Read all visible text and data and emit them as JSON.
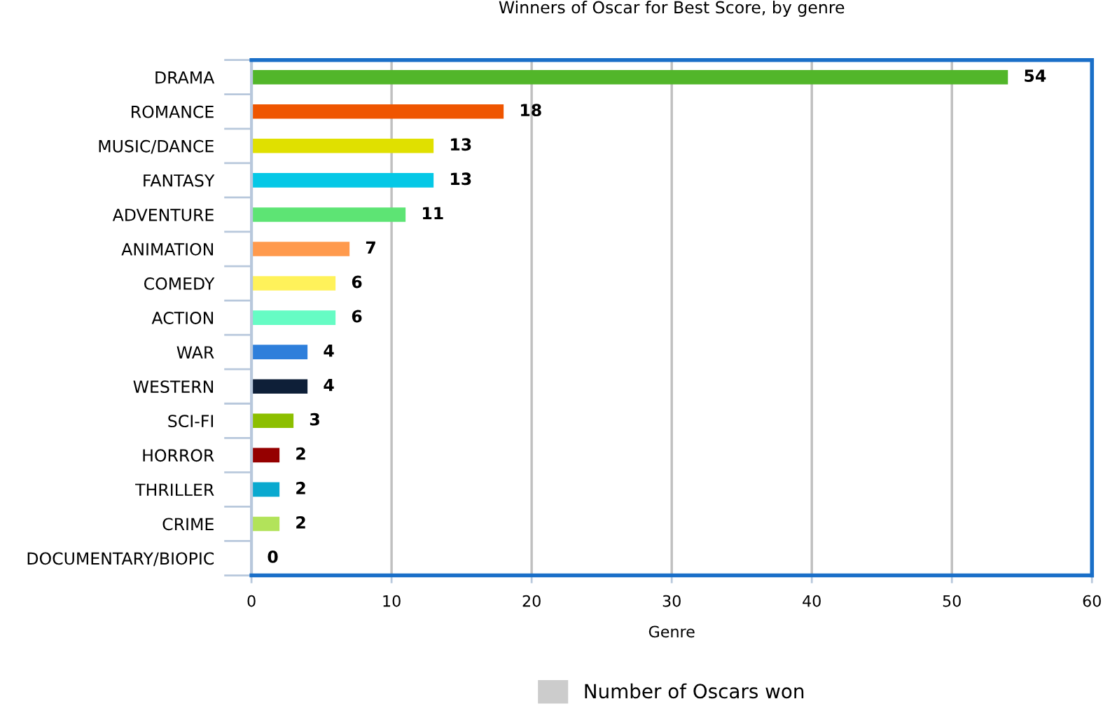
{
  "chart_data": {
    "type": "bar",
    "orientation": "horizontal",
    "title": "Winners of Oscar for Best Score, by genre",
    "xlabel": "Genre",
    "categories": [
      "DRAMA",
      "ROMANCE",
      "MUSIC/DANCE",
      "FANTASY",
      "ADVENTURE",
      "ANIMATION",
      "COMEDY",
      "ACTION",
      "WAR",
      "WESTERN",
      "SCI-FI",
      "HORROR",
      "THRILLER",
      "CRIME",
      "DOCUMENTARY/BIOPIC"
    ],
    "series": [
      {
        "name": "Number of Oscars won",
        "values": [
          54,
          18,
          13,
          13,
          11,
          7,
          6,
          6,
          4,
          4,
          3,
          2,
          2,
          2,
          0
        ]
      }
    ],
    "colors": [
      "#52b62a",
      "#ef5500",
      "#e0e000",
      "#05c8e6",
      "#5de474",
      "#ff9a4d",
      "#fff25a",
      "#66fcc4",
      "#2e7fdb",
      "#0e1f38",
      "#8cbf00",
      "#950000",
      "#0aa9cf",
      "#b2e35a",
      "#cccccc"
    ],
    "xlim": [
      0,
      60
    ],
    "xticks": [
      0,
      10,
      20,
      30,
      40,
      50,
      60
    ],
    "grid": "x",
    "legend": "bottom",
    "data_labels": true
  }
}
